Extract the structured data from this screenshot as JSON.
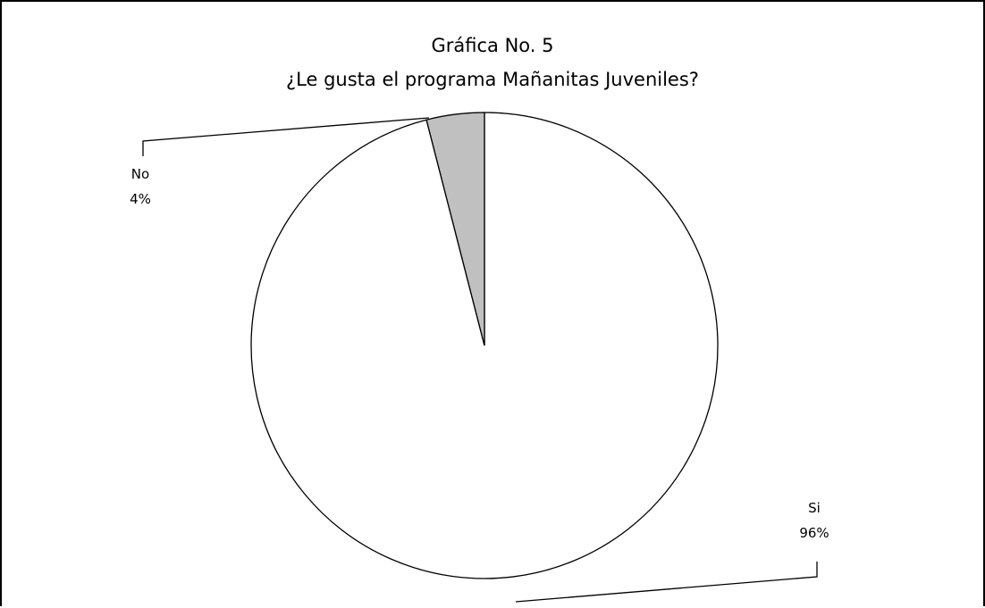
{
  "chart_data": {
    "type": "pie",
    "title": "Gráfica No. 5",
    "subtitle": "¿Le gusta el programa Mañanitas Juveniles?",
    "slices": [
      {
        "label": "Si",
        "value": 96,
        "display": "96%",
        "color": "#ffffff"
      },
      {
        "label": "No",
        "value": 4,
        "display": "4%",
        "color": "#c0c0c0"
      }
    ]
  }
}
